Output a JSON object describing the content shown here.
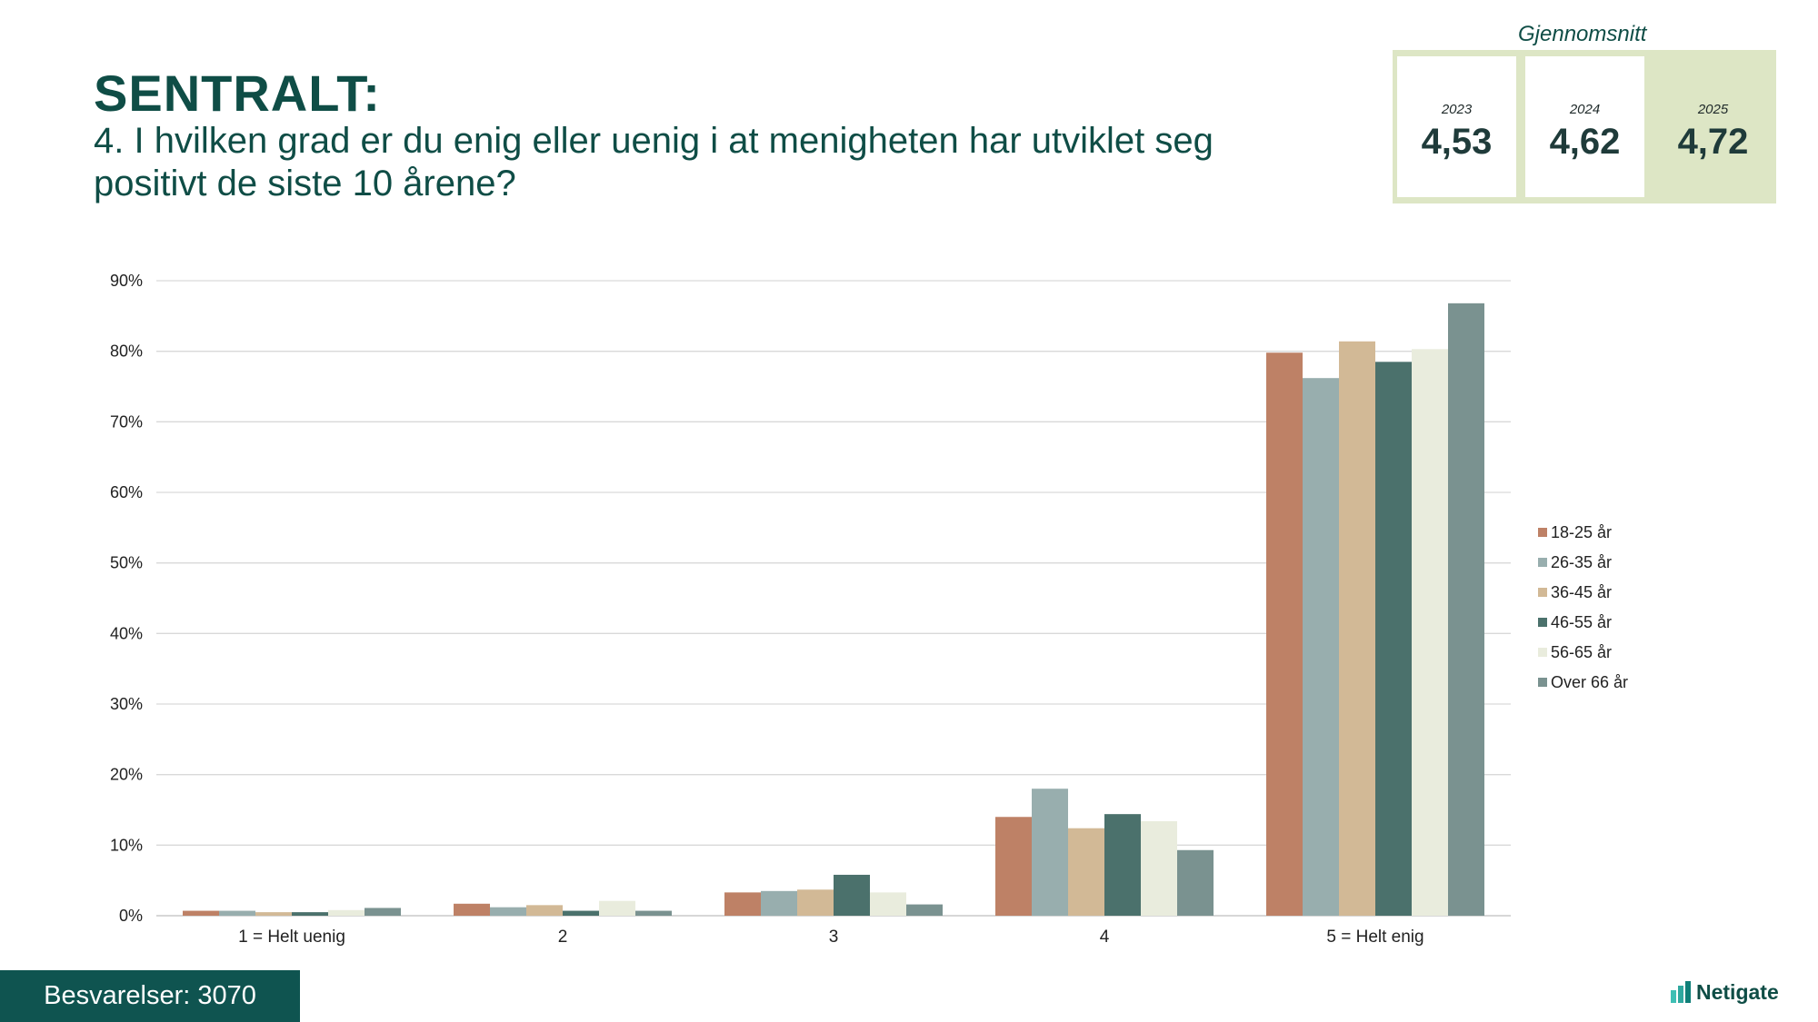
{
  "header": {
    "title": "SENTRALT:",
    "question": "4. I hvilken grad er du enig eller uenig i at menigheten har utviklet seg positivt de siste 10 årene?"
  },
  "averages": {
    "label": "Gjennomsnitt",
    "items": [
      {
        "year": "2023",
        "value": "4,53"
      },
      {
        "year": "2024",
        "value": "4,62"
      },
      {
        "year": "2025",
        "value": "4,72"
      }
    ]
  },
  "footer": {
    "responses": "Besvarelser: 3070",
    "logo": "Netigate"
  },
  "colors": {
    "brand": "#0f4d46",
    "footer_bg": "#0f5450",
    "highlight": "#dde6c5"
  },
  "chart_data": {
    "type": "bar",
    "categories": [
      "1 = Helt uenig",
      "2",
      "3",
      "4",
      "5 = Helt enig"
    ],
    "series": [
      {
        "name": "18-25 år",
        "color": "#be8166",
        "values": [
          0.7,
          1.7,
          3.3,
          14.0,
          79.8
        ]
      },
      {
        "name": "26-35 år",
        "color": "#98aeae",
        "values": [
          0.7,
          1.2,
          3.5,
          18.0,
          76.2
        ]
      },
      {
        "name": "36-45 år",
        "color": "#d2b996",
        "values": [
          0.5,
          1.5,
          3.7,
          12.4,
          81.4
        ]
      },
      {
        "name": "46-55 år",
        "color": "#4b716c",
        "values": [
          0.5,
          0.7,
          5.8,
          14.4,
          78.5
        ]
      },
      {
        "name": "56-65 år",
        "color": "#e9ecdd",
        "values": [
          0.8,
          2.1,
          3.3,
          13.4,
          80.3
        ]
      },
      {
        "name": "Over 66 år",
        "color": "#7a9290",
        "values": [
          1.1,
          0.7,
          1.6,
          9.3,
          86.8
        ]
      }
    ],
    "yticks": [
      "0%",
      "10%",
      "20%",
      "30%",
      "40%",
      "50%",
      "60%",
      "70%",
      "80%",
      "90%"
    ],
    "ylim": [
      0,
      90
    ],
    "grid": true,
    "legend_position": "right"
  }
}
